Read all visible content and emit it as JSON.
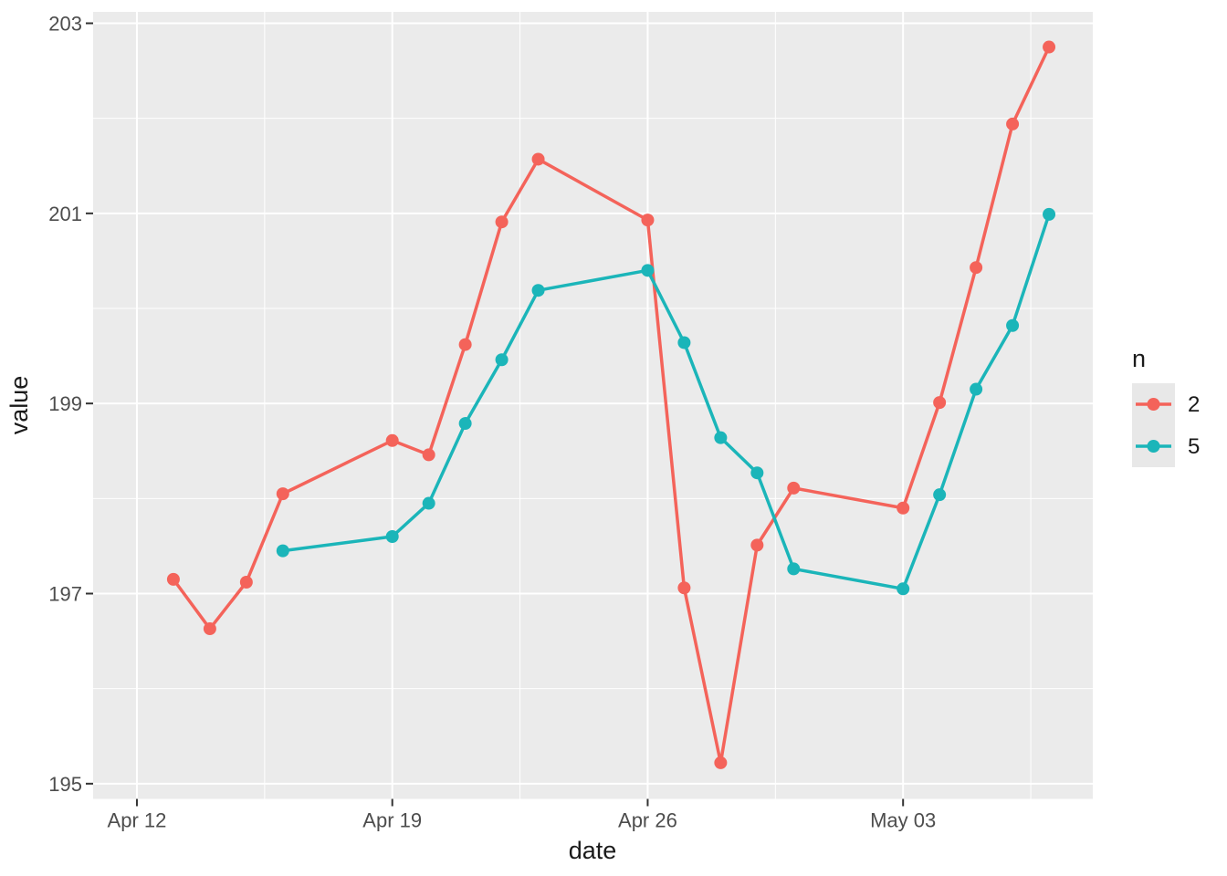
{
  "figure": {
    "background": "#FFFFFF",
    "panel_background": "#EBEBEB",
    "grid_color": "#FFFFFF",
    "tick_mark_color": "#333333",
    "tick_label_color": "#4D4D4D",
    "axis_title_color": "#1A1A1A"
  },
  "chart_data": {
    "type": "line",
    "title": "",
    "xlabel": "date",
    "ylabel": "value",
    "x_axis": {
      "major_ticks": [
        {
          "label": "Apr 12",
          "day": 0
        },
        {
          "label": "Apr 19",
          "day": 7
        },
        {
          "label": "Apr 26",
          "day": 14
        },
        {
          "label": "May 03",
          "day": 21
        }
      ],
      "minor_gridline_days": [
        3.5,
        10.5,
        17.5,
        24.5
      ],
      "range_days": [
        -1.2,
        26.2
      ]
    },
    "y_axis": {
      "major_ticks": [
        195,
        197,
        199,
        201,
        203
      ],
      "minor_gridlines": [
        196,
        198,
        200,
        202
      ],
      "range": [
        194.84,
        203.12
      ]
    },
    "legend": {
      "title": "n",
      "position": "right",
      "key_background": "#E8E8E8",
      "entries": [
        {
          "label": "2",
          "color": "#F4635A"
        },
        {
          "label": "5",
          "color": "#1BB5B9"
        }
      ]
    },
    "series": [
      {
        "name": "2",
        "color": "#F4635A",
        "points": [
          {
            "date": "Apr 13",
            "day": 1,
            "value": 197.15
          },
          {
            "date": "Apr 14",
            "day": 2,
            "value": 196.63
          },
          {
            "date": "Apr 15",
            "day": 3,
            "value": 197.12
          },
          {
            "date": "Apr 16",
            "day": 4,
            "value": 198.05
          },
          {
            "date": "Apr 19",
            "day": 7,
            "value": 198.61
          },
          {
            "date": "Apr 20",
            "day": 8,
            "value": 198.46
          },
          {
            "date": "Apr 21",
            "day": 9,
            "value": 199.62
          },
          {
            "date": "Apr 22",
            "day": 10,
            "value": 200.91
          },
          {
            "date": "Apr 23",
            "day": 11,
            "value": 201.57
          },
          {
            "date": "Apr 26",
            "day": 14,
            "value": 200.93
          },
          {
            "date": "Apr 27",
            "day": 15,
            "value": 197.06
          },
          {
            "date": "Apr 28",
            "day": 16,
            "value": 195.22
          },
          {
            "date": "Apr 29",
            "day": 17,
            "value": 197.51
          },
          {
            "date": "Apr 30",
            "day": 18,
            "value": 198.11
          },
          {
            "date": "May 03",
            "day": 21,
            "value": 197.9
          },
          {
            "date": "May 04",
            "day": 22,
            "value": 199.01
          },
          {
            "date": "May 05",
            "day": 23,
            "value": 200.43
          },
          {
            "date": "May 06",
            "day": 24,
            "value": 201.94
          },
          {
            "date": "May 07",
            "day": 25,
            "value": 202.75
          }
        ]
      },
      {
        "name": "5",
        "color": "#1BB5B9",
        "points": [
          {
            "date": "Apr 16",
            "day": 4,
            "value": 197.45
          },
          {
            "date": "Apr 19",
            "day": 7,
            "value": 197.6
          },
          {
            "date": "Apr 20",
            "day": 8,
            "value": 197.95
          },
          {
            "date": "Apr 21",
            "day": 9,
            "value": 198.79
          },
          {
            "date": "Apr 22",
            "day": 10,
            "value": 199.46
          },
          {
            "date": "Apr 23",
            "day": 11,
            "value": 200.19
          },
          {
            "date": "Apr 26",
            "day": 14,
            "value": 200.4
          },
          {
            "date": "Apr 27",
            "day": 15,
            "value": 199.64
          },
          {
            "date": "Apr 28",
            "day": 16,
            "value": 198.64
          },
          {
            "date": "Apr 29",
            "day": 17,
            "value": 198.27
          },
          {
            "date": "Apr 30",
            "day": 18,
            "value": 197.26
          },
          {
            "date": "May 03",
            "day": 21,
            "value": 197.05
          },
          {
            "date": "May 04",
            "day": 22,
            "value": 198.04
          },
          {
            "date": "May 05",
            "day": 23,
            "value": 199.15
          },
          {
            "date": "May 06",
            "day": 24,
            "value": 199.82
          },
          {
            "date": "May 07",
            "day": 25,
            "value": 200.99
          }
        ]
      }
    ]
  }
}
